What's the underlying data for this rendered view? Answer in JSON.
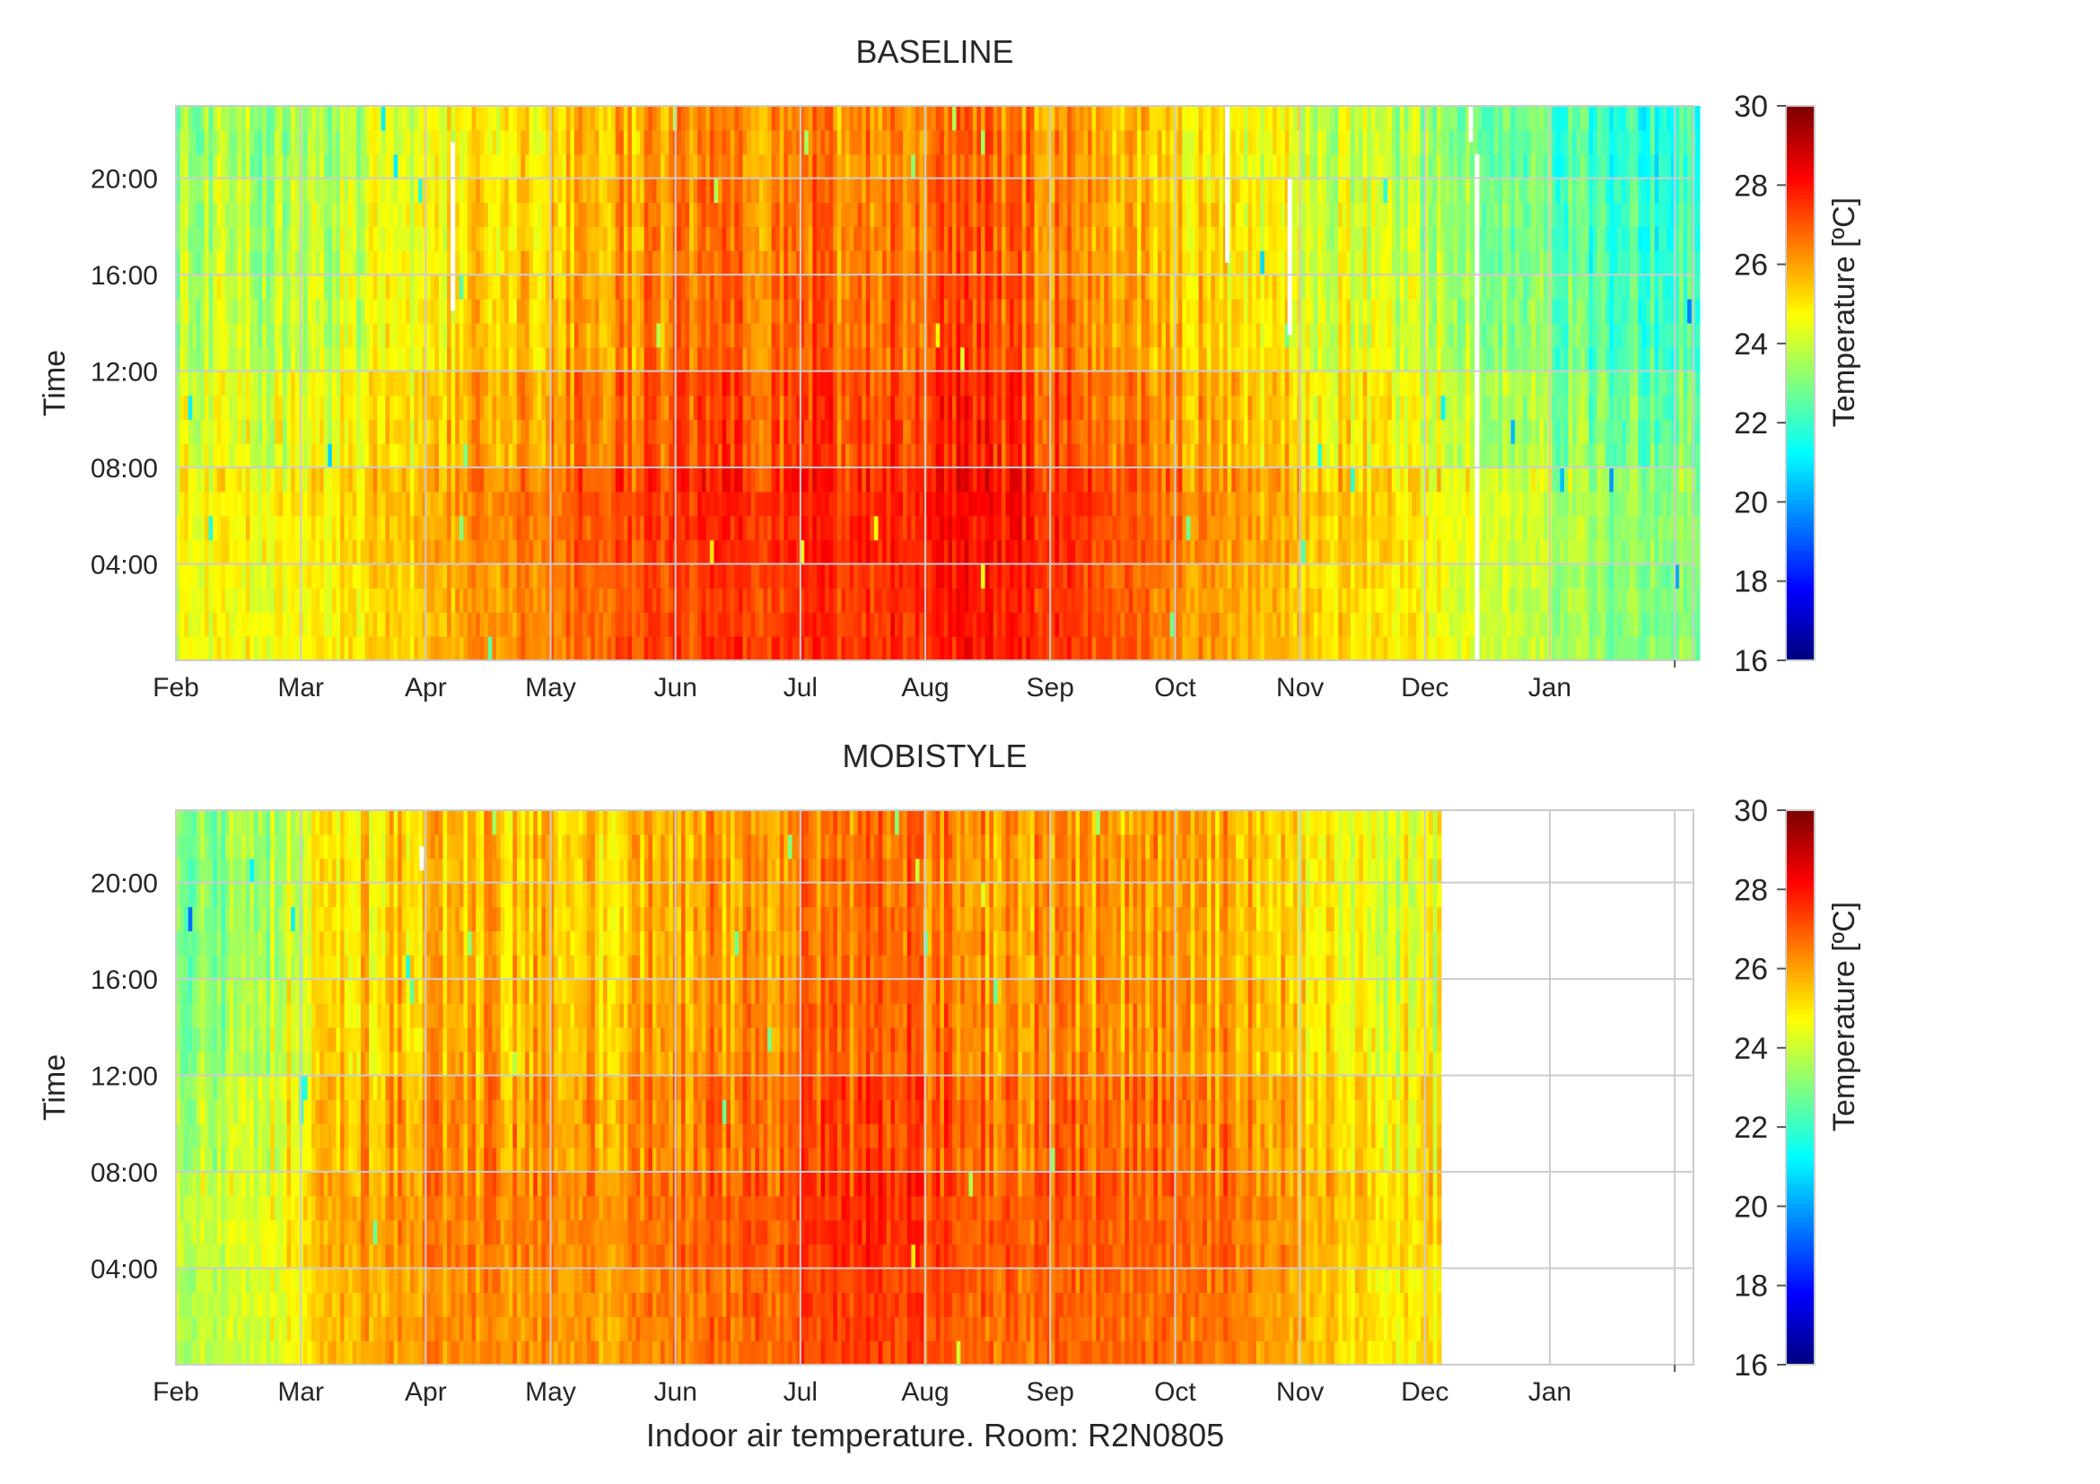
{
  "figure": {
    "caption": "Indoor air temperature. Room: R2N0805"
  },
  "chart_data": [
    {
      "type": "heatmap",
      "title": "BASELINE",
      "xlabel": "",
      "ylabel": "Time",
      "x_ticks": [
        "Feb",
        "Mar",
        "Apr",
        "May",
        "Jun",
        "Jul",
        "Aug",
        "Sep",
        "Oct",
        "Nov",
        "Dec",
        "Jan"
      ],
      "y_ticks": [
        "04:00",
        "08:00",
        "12:00",
        "16:00",
        "20:00"
      ],
      "y_range_hours": [
        0,
        23
      ],
      "grid": true,
      "data_end_month": 12.2,
      "colorbar": {
        "label": "Temperature [ºC]",
        "range": [
          16,
          30
        ],
        "ticks": [
          "16",
          "18",
          "20",
          "22",
          "24",
          "26",
          "28",
          "30"
        ],
        "colormap": "jet"
      },
      "monthly_mean_temperature": [
        24.0,
        24.4,
        25.6,
        26.4,
        26.9,
        26.9,
        27.3,
        26.6,
        25.2,
        24.6,
        23.7,
        22.5
      ],
      "diurnal_offset": [
        0.6,
        0.8,
        0.3,
        -0.2,
        -0.4,
        -0.6
      ],
      "missing_data": [
        {
          "month": 2.2,
          "hours": [
            14.5,
            21.5
          ]
        },
        {
          "month": 8.4,
          "hours": [
            16.5,
            24.0
          ]
        },
        {
          "month": 8.9,
          "hours": [
            13.5,
            20.0
          ]
        },
        {
          "month": 10.35,
          "hours": [
            21.5,
            24.0
          ]
        },
        {
          "month": 10.4,
          "hours": [
            0.0,
            21.0
          ]
        }
      ]
    },
    {
      "type": "heatmap",
      "title": "MOBISTYLE",
      "xlabel": "",
      "ylabel": "Time",
      "x_ticks": [
        "Feb",
        "Mar",
        "Apr",
        "May",
        "Jun",
        "Jul",
        "Aug",
        "Sep",
        "Oct",
        "Nov",
        "Dec",
        "Jan"
      ],
      "y_ticks": [
        "04:00",
        "08:00",
        "12:00",
        "16:00",
        "20:00"
      ],
      "y_range_hours": [
        0,
        23
      ],
      "grid": true,
      "data_end_month": 10.13,
      "colorbar": {
        "label": "Temperature [ºC]",
        "range": [
          16,
          30
        ],
        "ticks": [
          "16",
          "18",
          "20",
          "22",
          "24",
          "26",
          "28",
          "30"
        ],
        "colormap": "jet"
      },
      "monthly_mean_temperature": [
        23.6,
        25.6,
        26.0,
        25.9,
        26.6,
        27.2,
        26.6,
        26.4,
        26.3,
        24.7,
        0,
        0
      ],
      "diurnal_offset": [
        0.3,
        0.5,
        0.2,
        -0.2,
        -0.4,
        -0.4
      ],
      "missing_data": [
        {
          "month": 1.95,
          "hours": [
            20.5,
            21.5
          ]
        }
      ]
    }
  ]
}
